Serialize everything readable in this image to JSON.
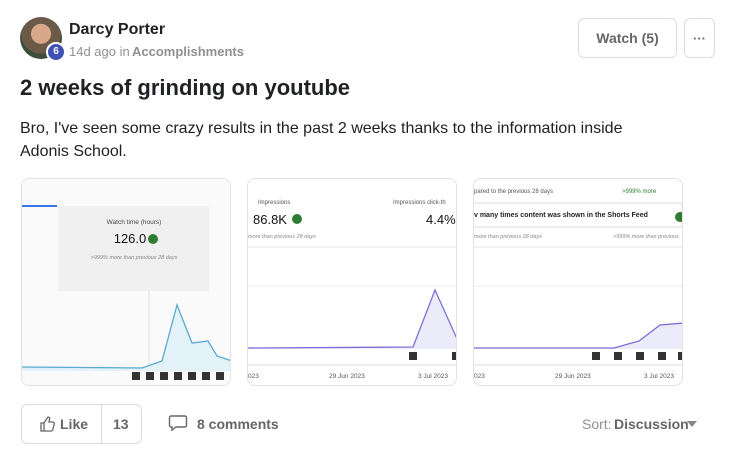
{
  "post": {
    "author": "Darcy Porter",
    "level": "6",
    "time": "14d ago in",
    "category": "Accomplishments",
    "watch": "Watch (5)",
    "more": "···",
    "title": "2 weeks of grinding on youtube",
    "body": "Bro, I've seen some crazy results in the past 2 weeks thanks to the information inside Adonis School.",
    "thumbnails": [
      {
        "metric": "Watch time (hours)",
        "value": "126.0",
        "note": ">999% more than previous 28 days"
      },
      {
        "metric": "Impressions",
        "value": "86.8K",
        "metric2": "Impressions click-th",
        "value2": "4.4%",
        "note": "more than previous 28 days",
        "axis": [
          "023",
          "29 Jun 2023",
          "3 Jul 2023"
        ]
      },
      {
        "header": "pared to the previous 28 days",
        "header2": ">999% more",
        "tooltip": "v many times content was shown in the Shorts Feed",
        "note": "more than previous 28 days",
        "note2": ">999% more than previous",
        "axis": [
          "023",
          "29 Jun 2023",
          "3 Jul 2023"
        ]
      }
    ],
    "like": "Like",
    "likes": "13",
    "comments": "8 comments",
    "sort_label": "Sort:",
    "sort_value": "Discussion"
  }
}
